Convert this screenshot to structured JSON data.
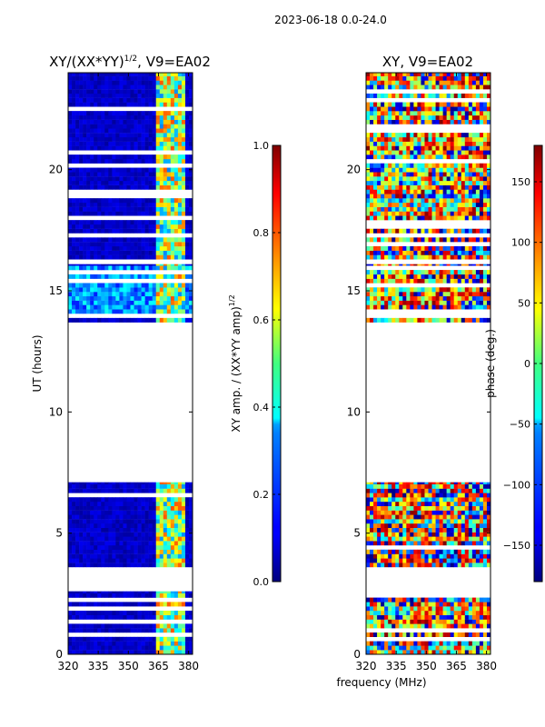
{
  "figure_title": "2023-06-18 0.0-24.0",
  "shared_xlabel": "frequency (MHz)",
  "chart_data": [
    {
      "type": "heatmap",
      "title_main": "XY/(XX*YY)",
      "title_sup": "1/2",
      "title_suffix": ", V9=EA02",
      "xlabel": "",
      "ylabel": "UT (hours)",
      "xlim": [
        320,
        382
      ],
      "ylim": [
        0,
        24
      ],
      "xticks": [
        320,
        335,
        350,
        365,
        380
      ],
      "yticks": [
        0,
        5,
        10,
        15,
        20
      ],
      "data_time_ranges_hours": [
        [
          0.0,
          2.6
        ],
        [
          3.6,
          7.1
        ],
        [
          13.7,
          16.1
        ],
        [
          16.3,
          24.0
        ]
      ],
      "colorbar": {
        "label_main": "XY amp. / (XX*YY amp)",
        "label_sup": "1/2",
        "range": [
          0.0,
          1.0
        ],
        "ticks": [
          0.0,
          0.2,
          0.4,
          0.6,
          0.8,
          1.0
        ],
        "tick_labels": [
          "0.0",
          "0.2",
          "0.4",
          "0.6",
          "0.8",
          "1.0"
        ],
        "colormap": "jet"
      }
    },
    {
      "type": "heatmap",
      "title_main": "XY, V9=EA02",
      "xlabel": "frequency (MHz)",
      "ylabel": "",
      "xlim": [
        320,
        382
      ],
      "ylim": [
        0,
        24
      ],
      "xticks": [
        320,
        335,
        350,
        365,
        380
      ],
      "yticks": [
        0,
        5,
        10,
        15,
        20
      ],
      "data_time_ranges_hours": [
        [
          0.0,
          2.6
        ],
        [
          3.6,
          7.1
        ],
        [
          13.7,
          16.1
        ],
        [
          16.3,
          24.0
        ]
      ],
      "colorbar": {
        "label_main": "phase (deg.)",
        "range": [
          -180,
          180
        ],
        "ticks": [
          -150,
          -100,
          -50,
          0,
          50,
          100,
          150
        ],
        "tick_labels": [
          "−150",
          "−100",
          "−50",
          "0",
          "50",
          "100",
          "150"
        ],
        "colormap": "jet"
      }
    }
  ]
}
